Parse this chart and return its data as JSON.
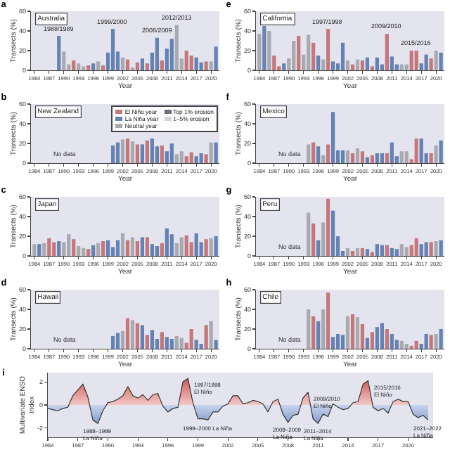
{
  "chart_data": [
    {
      "type": "bar",
      "title": "a",
      "xlabel": "Year",
      "ylabel": "Transects (%)",
      "x": [
        1989,
        1990,
        1991,
        1992,
        1993,
        1994,
        1995,
        1996,
        1997,
        1998,
        1999,
        2000,
        2001,
        2002,
        2003,
        2004,
        2005,
        2006,
        2007,
        2008,
        2009,
        2010,
        2011,
        2012,
        2013,
        2014,
        2015,
        2016,
        2017,
        2018,
        2019,
        2020,
        2021
      ],
      "xlim": [
        1983.3,
        2021.7
      ],
      "xticks": [
        1984,
        1987,
        1990,
        1993,
        1996,
        1999,
        2002,
        2005,
        2008,
        2011,
        2014,
        2017,
        2020
      ],
      "ylim": [
        0,
        60
      ],
      "yticks": [
        0,
        20,
        40,
        60
      ],
      "values": [
        35,
        19,
        6,
        10,
        7,
        4,
        5,
        7,
        9,
        5,
        18,
        42,
        19,
        13,
        11,
        3,
        8,
        12,
        7,
        18,
        33,
        10,
        22,
        32,
        46,
        12,
        20,
        15,
        13,
        8,
        9,
        9,
        24
      ],
      "colors": [
        "#6482b4",
        "#a9a9b0",
        "#a9a9b0",
        "#c4787c",
        "#a9a9b0",
        "#a9a9b0",
        "#c4787c",
        "#6482b4",
        "#a9a9b0",
        "#c4787c",
        "#6482b4",
        "#6482b4",
        "#6482b4",
        "#a9a9b0",
        "#c4787c",
        "#a9a9b0",
        "#c4787c",
        "#6482b4",
        "#c4787c",
        "#6482b4",
        "#6482b4",
        "#c4787c",
        "#6482b4",
        "#6482b4",
        "#a9a9b0",
        "#a9a9b0",
        "#c4787c",
        "#c4787c",
        "#6482b4",
        "#6482b4",
        "#c4787c",
        "#a9a9b0",
        "#6482b4"
      ],
      "annotations": [
        "Australia",
        {
          "text": "1988/1989",
          "x": 1989,
          "y": 35
        },
        {
          "text": "1999/2000",
          "x": 2000,
          "y": 42
        },
        {
          "text": "2008/2009",
          "x": 2009,
          "y": 33
        },
        {
          "text": "2012/2013",
          "x": 2013,
          "y": 46
        }
      ]
    },
    {
      "type": "bar",
      "title": "e",
      "xlabel": "Year",
      "ylabel": "Transects (%)",
      "x": [
        1984,
        1985,
        1986,
        1987,
        1988,
        1989,
        1990,
        1991,
        1992,
        1993,
        1994,
        1995,
        1996,
        1997,
        1998,
        1999,
        2000,
        2001,
        2002,
        2003,
        2004,
        2005,
        2006,
        2007,
        2008,
        2009,
        2010,
        2011,
        2012,
        2013,
        2014,
        2015,
        2016,
        2017,
        2018,
        2019,
        2020,
        2021
      ],
      "xlim": [
        1983.3,
        2021.7
      ],
      "xticks": [
        1984,
        1987,
        1990,
        1993,
        1996,
        1999,
        2002,
        2005,
        2008,
        2011,
        2014,
        2017,
        2020
      ],
      "ylim": [
        0,
        60
      ],
      "yticks": [
        0,
        20,
        40,
        60
      ],
      "values": [
        37,
        45,
        40,
        15,
        4,
        7,
        12,
        30,
        35,
        16,
        36,
        28,
        15,
        11,
        42,
        9,
        7,
        28,
        10,
        6,
        11,
        10,
        13,
        4,
        13,
        6,
        37,
        14,
        6,
        6,
        6,
        20,
        20,
        7,
        16,
        12,
        20,
        18
      ],
      "colors": [
        "#a9a9b0",
        "#6482b4",
        "#a9a9b0",
        "#c4787c",
        "#c4787c",
        "#6482b4",
        "#a9a9b0",
        "#a9a9b0",
        "#c4787c",
        "#a9a9b0",
        "#a9a9b0",
        "#c4787c",
        "#6482b4",
        "#a9a9b0",
        "#c4787c",
        "#6482b4",
        "#6482b4",
        "#6482b4",
        "#a9a9b0",
        "#c4787c",
        "#a9a9b0",
        "#c4787c",
        "#6482b4",
        "#c4787c",
        "#6482b4",
        "#6482b4",
        "#c4787c",
        "#6482b4",
        "#6482b4",
        "#a9a9b0",
        "#a9a9b0",
        "#c4787c",
        "#c4787c",
        "#6482b4",
        "#6482b4",
        "#c4787c",
        "#a9a9b0",
        "#6482b4"
      ],
      "annotations": [
        "California",
        {
          "text": "1997/1998",
          "x": 1998,
          "y": 42
        },
        {
          "text": "2009/2010",
          "x": 2010,
          "y": 37
        },
        {
          "text": "2015/2016",
          "x": 2016,
          "y": 20
        }
      ]
    },
    {
      "type": "bar",
      "title": "b",
      "xlabel": "Year",
      "ylabel": "Transects (%)",
      "x": [
        2000,
        2001,
        2002,
        2003,
        2004,
        2005,
        2006,
        2007,
        2008,
        2009,
        2010,
        2011,
        2012,
        2013,
        2014,
        2015,
        2016,
        2017,
        2018,
        2019,
        2020,
        2021
      ],
      "xlim": [
        1983.3,
        2021.7
      ],
      "xticks": [
        1984,
        1987,
        1990,
        1993,
        1996,
        1999,
        2002,
        2005,
        2008,
        2011,
        2014,
        2017,
        2020
      ],
      "ylim": [
        0,
        60
      ],
      "yticks": [
        0,
        20,
        40,
        60
      ],
      "legend": "top right",
      "series": [
        {
          "name": "El Niño year",
          "color": "#c4787c",
          "values": [
            null,
            null,
            null,
            25,
            null,
            19,
            null,
            23,
            null,
            null,
            18,
            null,
            null,
            null,
            null,
            7,
            11,
            null,
            null,
            9,
            null,
            null
          ]
        },
        {
          "name": "La Niña year",
          "color": "#6482b4",
          "values": [
            18,
            21,
            null,
            null,
            null,
            null,
            19,
            null,
            25,
            17,
            null,
            12,
            20,
            null,
            null,
            null,
            null,
            7,
            10,
            null,
            null,
            21
          ]
        },
        {
          "name": "Neutral year",
          "color": "#a9a9b0",
          "values": [
            null,
            null,
            24,
            null,
            22,
            null,
            null,
            null,
            null,
            null,
            null,
            null,
            null,
            9,
            12,
            null,
            null,
            null,
            null,
            null,
            21,
            null
          ]
        },
        {
          "name": "Top 1% erosion",
          "color": "#6e6e76",
          "values": [
            null,
            null,
            null,
            null,
            null,
            null,
            null,
            null,
            null,
            null,
            null,
            null,
            null,
            null,
            null,
            null,
            null,
            null,
            null,
            null,
            null,
            null
          ]
        },
        {
          "name": "1–5% erosion",
          "color": "#d2d2d8",
          "values": [
            null,
            null,
            null,
            null,
            null,
            null,
            null,
            null,
            null,
            null,
            null,
            null,
            null,
            null,
            null,
            null,
            null,
            null,
            null,
            null,
            null,
            null
          ]
        }
      ],
      "annotations": [
        "New Zealand",
        "No data"
      ]
    },
    {
      "type": "bar",
      "title": "f",
      "xlabel": "Year",
      "ylabel": "Transects (%)",
      "x": [
        1994,
        1995,
        1996,
        1997,
        1998,
        1999,
        2000,
        2001,
        2002,
        2003,
        2004,
        2005,
        2006,
        2007,
        2008,
        2009,
        2010,
        2011,
        2012,
        2013,
        2014,
        2015,
        2016,
        2017,
        2018,
        2019,
        2020,
        2021
      ],
      "xlim": [
        1983.3,
        2021.7
      ],
      "xticks": [
        1984,
        1987,
        1990,
        1993,
        1996,
        1999,
        2002,
        2005,
        2008,
        2011,
        2014,
        2017,
        2020
      ],
      "ylim": [
        0,
        60
      ],
      "yticks": [
        0,
        20,
        40,
        60
      ],
      "values": [
        19,
        21,
        17,
        8,
        19,
        52,
        13,
        13,
        13,
        10,
        15,
        12,
        6,
        8,
        10,
        10,
        10,
        21,
        7,
        12,
        12,
        4,
        25,
        25,
        10,
        10,
        18,
        23
      ],
      "colors": [
        "#a9a9b0",
        "#c4787c",
        "#6482b4",
        "#a9a9b0",
        "#c4787c",
        "#6482b4",
        "#6482b4",
        "#6482b4",
        "#a9a9b0",
        "#c4787c",
        "#a9a9b0",
        "#c4787c",
        "#6482b4",
        "#c4787c",
        "#6482b4",
        "#6482b4",
        "#c4787c",
        "#6482b4",
        "#6482b4",
        "#a9a9b0",
        "#a9a9b0",
        "#c4787c",
        "#c4787c",
        "#6482b4",
        "#6482b4",
        "#c4787c",
        "#a9a9b0",
        "#6482b4"
      ],
      "annotations": [
        "Mexico",
        "No data"
      ]
    },
    {
      "type": "bar",
      "title": "c",
      "xlabel": "Year",
      "ylabel": "Transects (%)",
      "x": [
        1984,
        1985,
        1986,
        1987,
        1988,
        1989,
        1990,
        1991,
        1992,
        1993,
        1994,
        1995,
        1996,
        1997,
        1998,
        1999,
        2000,
        2001,
        2002,
        2003,
        2004,
        2005,
        2006,
        2007,
        2008,
        2009,
        2010,
        2011,
        2012,
        2013,
        2014,
        2015,
        2016,
        2017,
        2018,
        2019,
        2020,
        2021
      ],
      "xlim": [
        1983.3,
        2021.7
      ],
      "xticks": [
        1984,
        1987,
        1990,
        1993,
        1996,
        1999,
        2002,
        2005,
        2008,
        2011,
        2014,
        2017,
        2020
      ],
      "ylim": [
        0,
        60
      ],
      "yticks": [
        0,
        20,
        40,
        60
      ],
      "values": [
        12,
        12,
        13,
        18,
        14,
        15,
        14,
        22,
        17,
        10,
        8,
        7,
        11,
        13,
        15,
        16,
        9,
        16,
        23,
        16,
        19,
        15,
        19,
        19,
        12,
        10,
        13,
        28,
        22,
        13,
        19,
        21,
        14,
        23,
        14,
        17,
        18,
        20
      ],
      "colors": [
        "#a9a9b0",
        "#6482b4",
        "#a9a9b0",
        "#c4787c",
        "#c4787c",
        "#6482b4",
        "#a9a9b0",
        "#a9a9b0",
        "#c4787c",
        "#a9a9b0",
        "#a9a9b0",
        "#c4787c",
        "#6482b4",
        "#a9a9b0",
        "#c4787c",
        "#6482b4",
        "#6482b4",
        "#6482b4",
        "#a9a9b0",
        "#c4787c",
        "#a9a9b0",
        "#c4787c",
        "#6482b4",
        "#c4787c",
        "#6482b4",
        "#6482b4",
        "#c4787c",
        "#6482b4",
        "#6482b4",
        "#a9a9b0",
        "#a9a9b0",
        "#c4787c",
        "#c4787c",
        "#6482b4",
        "#6482b4",
        "#c4787c",
        "#a9a9b0",
        "#6482b4"
      ],
      "annotations": [
        "Japan"
      ]
    },
    {
      "type": "bar",
      "title": "g",
      "xlabel": "Year",
      "ylabel": "Transects (%)",
      "x": [
        1994,
        1995,
        1996,
        1997,
        1998,
        1999,
        2000,
        2001,
        2002,
        2003,
        2004,
        2005,
        2006,
        2007,
        2008,
        2009,
        2010,
        2011,
        2012,
        2013,
        2014,
        2015,
        2016,
        2017,
        2018,
        2019,
        2020,
        2021
      ],
      "xlim": [
        1983.3,
        2021.7
      ],
      "xticks": [
        1984,
        1987,
        1990,
        1993,
        1996,
        1999,
        2002,
        2005,
        2008,
        2011,
        2014,
        2017,
        2020
      ],
      "ylim": [
        0,
        60
      ],
      "yticks": [
        0,
        20,
        40,
        60
      ],
      "values": [
        44,
        33,
        16,
        34,
        58,
        46,
        20,
        5,
        8,
        5,
        8,
        8,
        7,
        4,
        12,
        11,
        11,
        8,
        7,
        12,
        9,
        11,
        18,
        12,
        14,
        14,
        15,
        16
      ],
      "colors": [
        "#a9a9b0",
        "#c4787c",
        "#6482b4",
        "#a9a9b0",
        "#c4787c",
        "#6482b4",
        "#6482b4",
        "#6482b4",
        "#a9a9b0",
        "#c4787c",
        "#a9a9b0",
        "#c4787c",
        "#6482b4",
        "#c4787c",
        "#6482b4",
        "#6482b4",
        "#c4787c",
        "#6482b4",
        "#6482b4",
        "#a9a9b0",
        "#a9a9b0",
        "#c4787c",
        "#c4787c",
        "#6482b4",
        "#6482b4",
        "#c4787c",
        "#a9a9b0",
        "#6482b4"
      ],
      "annotations": [
        "Peru",
        "No data"
      ]
    },
    {
      "type": "bar",
      "title": "d",
      "xlabel": "Year",
      "ylabel": "Transects (%)",
      "x": [
        2000,
        2001,
        2002,
        2003,
        2004,
        2005,
        2006,
        2007,
        2008,
        2009,
        2010,
        2011,
        2012,
        2013,
        2014,
        2015,
        2016,
        2017,
        2018,
        2019,
        2020,
        2021
      ],
      "xlim": [
        1983.3,
        2021.7
      ],
      "xticks": [
        1984,
        1987,
        1990,
        1993,
        1996,
        1999,
        2002,
        2005,
        2008,
        2011,
        2014,
        2017,
        2020
      ],
      "ylim": [
        0,
        60
      ],
      "yticks": [
        0,
        20,
        40,
        60
      ],
      "values": [
        13,
        16,
        18,
        31,
        29,
        26,
        24,
        14,
        19,
        10,
        17,
        12,
        10,
        13,
        11,
        6,
        20,
        9,
        5,
        24,
        28,
        9
      ],
      "colors": [
        "#6482b4",
        "#6482b4",
        "#a9a9b0",
        "#c4787c",
        "#a9a9b0",
        "#c4787c",
        "#6482b4",
        "#c4787c",
        "#6482b4",
        "#6482b4",
        "#c4787c",
        "#6482b4",
        "#6482b4",
        "#a9a9b0",
        "#a9a9b0",
        "#c4787c",
        "#c4787c",
        "#6482b4",
        "#6482b4",
        "#c4787c",
        "#a9a9b0",
        "#6482b4"
      ],
      "annotations": [
        "Hawaii",
        "No data"
      ]
    },
    {
      "type": "bar",
      "title": "h",
      "xlabel": "Year",
      "ylabel": "Transects (%)",
      "x": [
        1994,
        1995,
        1996,
        1997,
        1998,
        1999,
        2000,
        2001,
        2002,
        2003,
        2004,
        2005,
        2006,
        2007,
        2008,
        2009,
        2010,
        2011,
        2012,
        2013,
        2014,
        2015,
        2016,
        2017,
        2018,
        2019,
        2020,
        2021
      ],
      "xlim": [
        1983.3,
        2021.7
      ],
      "xticks": [
        1984,
        1987,
        1990,
        1993,
        1996,
        1999,
        2002,
        2005,
        2008,
        2011,
        2014,
        2017,
        2020
      ],
      "ylim": [
        0,
        60
      ],
      "yticks": [
        0,
        20,
        40,
        60
      ],
      "values": [
        40,
        33,
        28,
        40,
        57,
        12,
        15,
        14,
        33,
        35,
        32,
        25,
        11,
        17,
        22,
        26,
        20,
        15,
        9,
        8,
        5,
        3,
        8,
        5,
        15,
        14,
        15,
        20
      ],
      "colors": [
        "#a9a9b0",
        "#c4787c",
        "#6482b4",
        "#a9a9b0",
        "#c4787c",
        "#6482b4",
        "#6482b4",
        "#6482b4",
        "#a9a9b0",
        "#c4787c",
        "#a9a9b0",
        "#c4787c",
        "#6482b4",
        "#c4787c",
        "#6482b4",
        "#6482b4",
        "#c4787c",
        "#6482b4",
        "#6482b4",
        "#a9a9b0",
        "#a9a9b0",
        "#c4787c",
        "#c4787c",
        "#6482b4",
        "#6482b4",
        "#c4787c",
        "#a9a9b0",
        "#6482b4"
      ],
      "annotations": [
        "Chile",
        "No data"
      ]
    },
    {
      "type": "area",
      "title": "i",
      "ylabel": "Multivariate ENSO\nIndex",
      "xlim": [
        1984,
        2022.5
      ],
      "xticks": [
        1984,
        1987,
        1990,
        1993,
        1996,
        1999,
        2002,
        2005,
        2008,
        2011,
        2014,
        2017,
        2020
      ],
      "ylim": [
        -2.8,
        2.8
      ],
      "yticks": [
        -2,
        0,
        2
      ],
      "series": [
        {
          "color": "#333333",
          "x": [
            1984,
            1984.5,
            1985,
            1985.5,
            1986,
            1986.5,
            1987,
            1987.5,
            1988,
            1988.5,
            1989,
            1989.5,
            1990,
            1990.5,
            1991,
            1991.5,
            1992,
            1992.5,
            1993,
            1993.5,
            1994,
            1994.5,
            1995,
            1995.5,
            1996,
            1996.5,
            1997,
            1997.5,
            1998,
            1998.5,
            1999,
            1999.5,
            2000,
            2000.5,
            2001,
            2001.5,
            2002,
            2002.5,
            2003,
            2003.5,
            2004,
            2004.5,
            2005,
            2005.5,
            2006,
            2006.5,
            2007,
            2007.5,
            2008,
            2008.5,
            2009,
            2009.5,
            2010,
            2010.5,
            2011,
            2011.5,
            2012,
            2012.5,
            2013,
            2013.5,
            2014,
            2014.5,
            2015,
            2015.5,
            2016,
            2016.5,
            2017,
            2017.5,
            2018,
            2018.5,
            2019,
            2019.5,
            2020,
            2020.5,
            2021,
            2021.5,
            2022
          ],
          "values": [
            -0.3,
            -0.4,
            -0.5,
            -0.3,
            -0.2,
            0.8,
            1.3,
            1.8,
            0.7,
            -1.3,
            -1.6,
            -0.5,
            0.2,
            0.3,
            0.5,
            0.8,
            1.6,
            0.8,
            0.6,
            0.9,
            0.4,
            0.9,
            1.0,
            -0.1,
            -0.6,
            -0.3,
            -0.2,
            2.0,
            2.3,
            0.2,
            -1.2,
            -1.2,
            -1.3,
            -0.6,
            -0.6,
            -0.1,
            0.1,
            0.8,
            0.8,
            0.1,
            0.2,
            0.4,
            0.3,
            0.1,
            -0.6,
            0.3,
            0.5,
            -0.8,
            -1.5,
            -0.9,
            -0.8,
            0.6,
            1.1,
            -1.2,
            -1.6,
            -0.8,
            -1.0,
            0.1,
            -0.2,
            -0.4,
            -0.3,
            0.2,
            0.3,
            1.8,
            2.1,
            -0.2,
            -0.5,
            -0.3,
            -0.7,
            0.3,
            0.5,
            0.3,
            0.3,
            -0.8,
            -1.1,
            -0.9,
            -1.3
          ]
        }
      ],
      "annotations": [
        {
          "text": "1988–1989\nLa Niña",
          "x": 1989,
          "y": -1.6
        },
        {
          "text": "1997/1998\nEl Niño",
          "x": 1998,
          "y": 2.3
        },
        {
          "text": "1999–2000 La Niña",
          "x": 2000,
          "y": -1.3
        },
        {
          "text": "2009/2010\nEl Niño",
          "x": 2010,
          "y": 1.1
        },
        {
          "text": "2008–2009\nLa Niña",
          "x": 2008,
          "y": -1.5
        },
        {
          "text": "2011–2014\nLa Niña",
          "x": 2011,
          "y": -1.6
        },
        {
          "text": "2015/2016\nEl Niño",
          "x": 2016,
          "y": 2.1
        },
        {
          "text": "2021–2022\nLa Niña",
          "x": 2022,
          "y": -1.3
        }
      ]
    }
  ]
}
